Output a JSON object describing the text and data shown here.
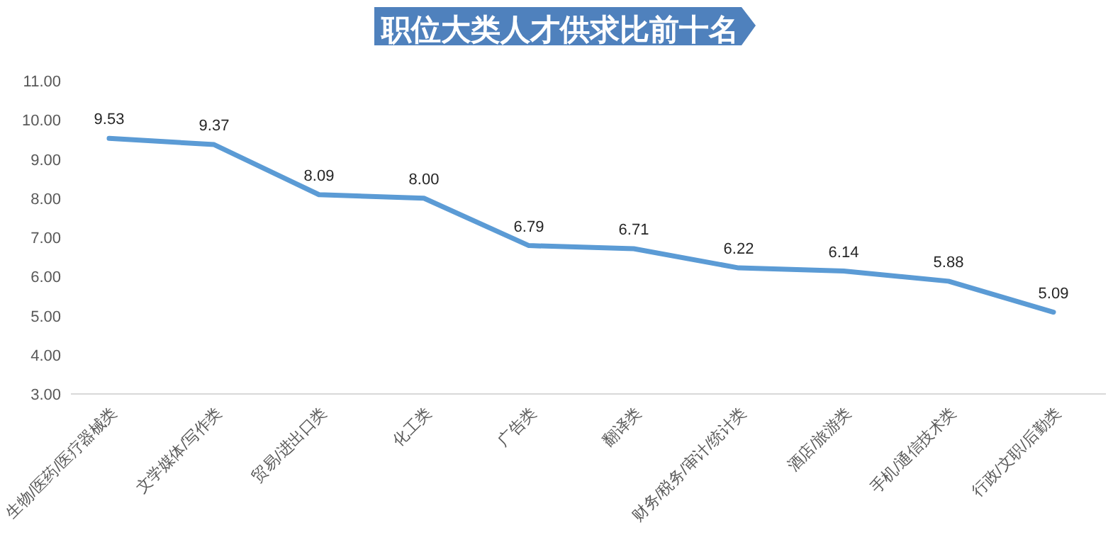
{
  "chart_data": {
    "type": "line",
    "title": "职位大类人才供求比前十名",
    "categories": [
      "生物/医药/医疗器械类",
      "文学媒体/写作类",
      "贸易/进出口类",
      "化工类",
      "广告类",
      "翻译类",
      "财务/税务/审计/统计类",
      "酒店/旅游类",
      "手机/通信技术类",
      "行政/文职/后勤类"
    ],
    "series": [
      {
        "color": "#5b9bd5",
        "values": [
          9.53,
          9.37,
          8.09,
          8.0,
          6.79,
          6.71,
          6.22,
          6.14,
          5.88,
          5.09
        ]
      }
    ],
    "value_labels": [
      "9.53",
      "9.37",
      "8.09",
      "8.00",
      "6.79",
      "6.71",
      "6.22",
      "6.14",
      "5.88",
      "5.09"
    ],
    "ylim": [
      3,
      11
    ],
    "yticks": [
      {
        "value": 3,
        "label": "3.00"
      },
      {
        "value": 4,
        "label": "4.00"
      },
      {
        "value": 5,
        "label": "5.00"
      },
      {
        "value": 6,
        "label": "6.00"
      },
      {
        "value": 7,
        "label": "7.00"
      },
      {
        "value": 8,
        "label": "8.00"
      },
      {
        "value": 9,
        "label": "9.00"
      },
      {
        "value": 10,
        "label": "10.00"
      },
      {
        "value": 11,
        "label": "11.00"
      }
    ],
    "grid": false,
    "marker": "none",
    "line_style": "solid"
  }
}
